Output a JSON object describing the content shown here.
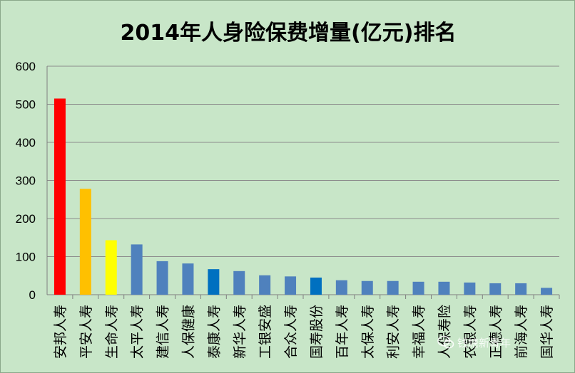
{
  "chart_data": {
    "type": "bar",
    "title": "2014年人身险保费增量(亿元)排名",
    "xlabel": "",
    "ylabel": "",
    "ylim": [
      0,
      600
    ],
    "yticks": [
      0,
      100,
      200,
      300,
      400,
      500,
      600
    ],
    "grid": true,
    "legend": "none",
    "categories": [
      "安邦人寿",
      "平安人寿",
      "生命人寿",
      "太平人寿",
      "建信人寿",
      "人保健康",
      "泰康人寿",
      "新华人寿",
      "工银安盛",
      "合众人寿",
      "国寿股份",
      "百年人寿",
      "太保人寿",
      "利安人寿",
      "幸福人寿",
      "人保寿险",
      "农银人寿",
      "正德人寿",
      "前海人寿",
      "国华人寿"
    ],
    "values": [
      515,
      278,
      143,
      132,
      88,
      82,
      67,
      62,
      51,
      48,
      45,
      38,
      36,
      36,
      34,
      34,
      32,
      30,
      30,
      18
    ],
    "colors": [
      "#ff0000",
      "#ffc000",
      "#ffff00",
      "#4f81bd",
      "#4f81bd",
      "#4f81bd",
      "#0070c0",
      "#4f81bd",
      "#4f81bd",
      "#4f81bd",
      "#0070c0",
      "#4f81bd",
      "#4f81bd",
      "#4f81bd",
      "#4f81bd",
      "#4f81bd",
      "#4f81bd",
      "#4f81bd",
      "#4f81bd",
      "#4f81bd"
    ],
    "background_color": "#c8e6c8",
    "grid_color": "#8c8c8c"
  },
  "watermark": {
    "text": "钱塘新青年",
    "logo_icon": "wechat-icon"
  }
}
